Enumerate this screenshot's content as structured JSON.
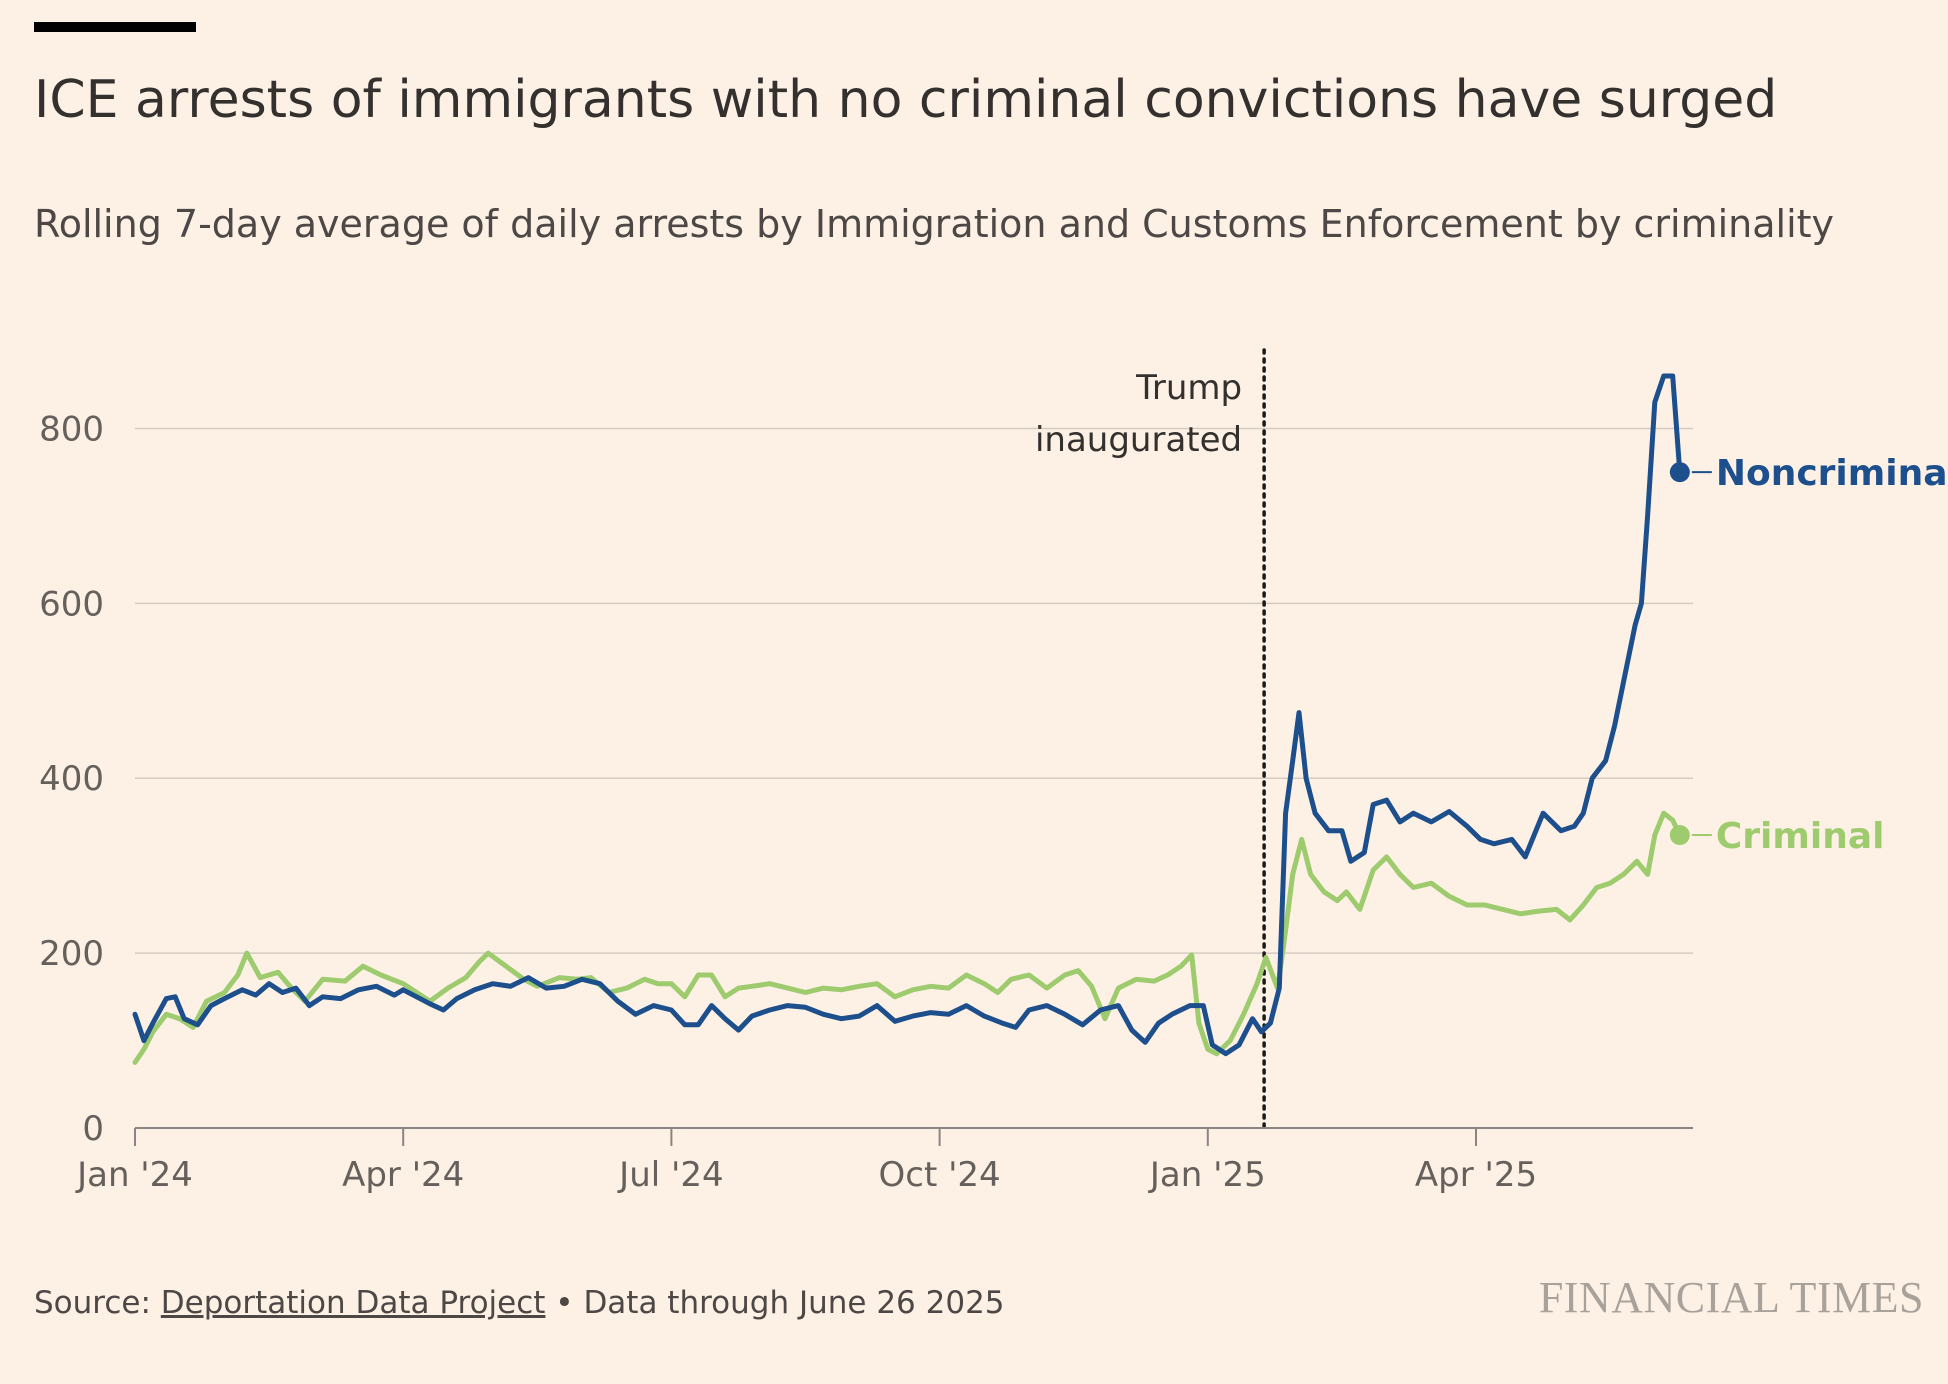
{
  "header": {
    "title": "ICE arrests of immigrants with no criminal convictions have surged",
    "subtitle": "Rolling 7-day average of daily arrests by Immigration and Customs Enforcement by criminality"
  },
  "footer": {
    "source_prefix": "Source: ",
    "source_link": "Deportation Data Project",
    "separator": " • ",
    "data_through": "Data through June 26 2025",
    "brand": "FINANCIAL TIMES"
  },
  "colors": {
    "background": "#fdf1e6",
    "noncriminal": "#1d4f8c",
    "criminal": "#9ecb6e",
    "gridline": "#d6cbbf",
    "axis": "#8a8580",
    "text": "#33302e"
  },
  "chart_data": {
    "type": "line",
    "title": "ICE arrests of immigrants with no criminal convictions have surged",
    "subtitle": "Rolling 7-day average of daily arrests by Immigration and Customs Enforcement by criminality",
    "xlabel": "",
    "ylabel": "",
    "x_unit": "months since Jan 2024",
    "xlim": [
      0,
      17.85
    ],
    "ylim": [
      0,
      900
    ],
    "yticks": [
      0,
      200,
      400,
      600,
      800
    ],
    "xticks": [
      {
        "value": 0,
        "label": "Jan '24"
      },
      {
        "value": 3,
        "label": "Apr '24"
      },
      {
        "value": 6,
        "label": "Jul '24"
      },
      {
        "value": 9,
        "label": "Oct '24"
      },
      {
        "value": 12,
        "label": "Jan '25"
      },
      {
        "value": 15,
        "label": "Apr '25"
      }
    ],
    "grid": true,
    "annotations": [
      {
        "x": 12.63,
        "lines": [
          "Trump",
          "inaugurated"
        ],
        "style": "dotted-vertical"
      }
    ],
    "series": [
      {
        "name": "Noncriminal",
        "color": "#1d4f8c",
        "end_label": "Noncriminal",
        "points": [
          [
            0,
            130
          ],
          [
            0.1,
            100
          ],
          [
            0.2,
            120
          ],
          [
            0.35,
            148
          ],
          [
            0.45,
            150
          ],
          [
            0.55,
            125
          ],
          [
            0.7,
            118
          ],
          [
            0.85,
            140
          ],
          [
            1.0,
            148
          ],
          [
            1.2,
            158
          ],
          [
            1.35,
            152
          ],
          [
            1.5,
            165
          ],
          [
            1.65,
            155
          ],
          [
            1.8,
            160
          ],
          [
            1.95,
            140
          ],
          [
            2.1,
            150
          ],
          [
            2.3,
            148
          ],
          [
            2.5,
            158
          ],
          [
            2.7,
            162
          ],
          [
            2.9,
            152
          ],
          [
            3.0,
            158
          ],
          [
            3.15,
            150
          ],
          [
            3.3,
            142
          ],
          [
            3.45,
            135
          ],
          [
            3.6,
            148
          ],
          [
            3.8,
            158
          ],
          [
            4.0,
            165
          ],
          [
            4.2,
            162
          ],
          [
            4.4,
            172
          ],
          [
            4.6,
            160
          ],
          [
            4.8,
            162
          ],
          [
            5.0,
            170
          ],
          [
            5.2,
            165
          ],
          [
            5.4,
            145
          ],
          [
            5.6,
            130
          ],
          [
            5.8,
            140
          ],
          [
            6.0,
            135
          ],
          [
            6.15,
            118
          ],
          [
            6.3,
            118
          ],
          [
            6.45,
            140
          ],
          [
            6.6,
            125
          ],
          [
            6.75,
            112
          ],
          [
            6.9,
            128
          ],
          [
            7.1,
            135
          ],
          [
            7.3,
            140
          ],
          [
            7.5,
            138
          ],
          [
            7.7,
            130
          ],
          [
            7.9,
            125
          ],
          [
            8.1,
            128
          ],
          [
            8.3,
            140
          ],
          [
            8.5,
            122
          ],
          [
            8.7,
            128
          ],
          [
            8.9,
            132
          ],
          [
            9.1,
            130
          ],
          [
            9.3,
            140
          ],
          [
            9.5,
            128
          ],
          [
            9.7,
            120
          ],
          [
            9.85,
            115
          ],
          [
            10.0,
            135
          ],
          [
            10.2,
            140
          ],
          [
            10.4,
            130
          ],
          [
            10.6,
            118
          ],
          [
            10.8,
            135
          ],
          [
            11.0,
            140
          ],
          [
            11.15,
            112
          ],
          [
            11.3,
            98
          ],
          [
            11.45,
            120
          ],
          [
            11.6,
            130
          ],
          [
            11.8,
            140
          ],
          [
            11.95,
            140
          ],
          [
            12.05,
            95
          ],
          [
            12.2,
            85
          ],
          [
            12.35,
            95
          ],
          [
            12.5,
            125
          ],
          [
            12.6,
            110
          ],
          [
            12.7,
            120
          ],
          [
            12.8,
            160
          ],
          [
            12.87,
            360
          ],
          [
            12.95,
            420
          ],
          [
            13.02,
            475
          ],
          [
            13.1,
            400
          ],
          [
            13.2,
            360
          ],
          [
            13.35,
            340
          ],
          [
            13.5,
            340
          ],
          [
            13.6,
            305
          ],
          [
            13.75,
            315
          ],
          [
            13.85,
            370
          ],
          [
            14.0,
            375
          ],
          [
            14.15,
            350
          ],
          [
            14.3,
            360
          ],
          [
            14.5,
            350
          ],
          [
            14.7,
            362
          ],
          [
            14.9,
            345
          ],
          [
            15.05,
            330
          ],
          [
            15.2,
            325
          ],
          [
            15.4,
            330
          ],
          [
            15.55,
            310
          ],
          [
            15.75,
            360
          ],
          [
            15.95,
            340
          ],
          [
            16.1,
            345
          ],
          [
            16.2,
            360
          ],
          [
            16.3,
            400
          ],
          [
            16.45,
            420
          ],
          [
            16.55,
            460
          ],
          [
            16.65,
            510
          ],
          [
            16.78,
            575
          ],
          [
            16.85,
            600
          ],
          [
            16.92,
            700
          ],
          [
            17.0,
            830
          ],
          [
            17.1,
            860
          ],
          [
            17.2,
            860
          ],
          [
            17.28,
            750
          ]
        ]
      },
      {
        "name": "Criminal",
        "color": "#9ecb6e",
        "end_label": "Criminal",
        "points": [
          [
            0,
            75
          ],
          [
            0.1,
            90
          ],
          [
            0.2,
            110
          ],
          [
            0.35,
            130
          ],
          [
            0.5,
            125
          ],
          [
            0.65,
            115
          ],
          [
            0.8,
            145
          ],
          [
            1.0,
            155
          ],
          [
            1.15,
            175
          ],
          [
            1.25,
            200
          ],
          [
            1.4,
            172
          ],
          [
            1.6,
            178
          ],
          [
            1.75,
            160
          ],
          [
            1.9,
            145
          ],
          [
            2.1,
            170
          ],
          [
            2.35,
            168
          ],
          [
            2.55,
            185
          ],
          [
            2.75,
            175
          ],
          [
            3.0,
            165
          ],
          [
            3.15,
            155
          ],
          [
            3.3,
            145
          ],
          [
            3.5,
            160
          ],
          [
            3.7,
            172
          ],
          [
            3.85,
            190
          ],
          [
            3.95,
            200
          ],
          [
            4.15,
            185
          ],
          [
            4.35,
            170
          ],
          [
            4.5,
            162
          ],
          [
            4.75,
            172
          ],
          [
            4.95,
            170
          ],
          [
            5.1,
            172
          ],
          [
            5.3,
            155
          ],
          [
            5.5,
            160
          ],
          [
            5.7,
            170
          ],
          [
            5.85,
            165
          ],
          [
            6.0,
            165
          ],
          [
            6.15,
            150
          ],
          [
            6.3,
            175
          ],
          [
            6.45,
            175
          ],
          [
            6.6,
            150
          ],
          [
            6.75,
            160
          ],
          [
            6.9,
            162
          ],
          [
            7.1,
            165
          ],
          [
            7.3,
            160
          ],
          [
            7.5,
            155
          ],
          [
            7.7,
            160
          ],
          [
            7.9,
            158
          ],
          [
            8.1,
            162
          ],
          [
            8.3,
            165
          ],
          [
            8.5,
            150
          ],
          [
            8.7,
            158
          ],
          [
            8.9,
            162
          ],
          [
            9.1,
            160
          ],
          [
            9.3,
            175
          ],
          [
            9.5,
            165
          ],
          [
            9.65,
            155
          ],
          [
            9.8,
            170
          ],
          [
            10.0,
            175
          ],
          [
            10.2,
            160
          ],
          [
            10.4,
            175
          ],
          [
            10.55,
            180
          ],
          [
            10.7,
            162
          ],
          [
            10.85,
            125
          ],
          [
            11.0,
            160
          ],
          [
            11.2,
            170
          ],
          [
            11.4,
            168
          ],
          [
            11.55,
            175
          ],
          [
            11.7,
            185
          ],
          [
            11.82,
            198
          ],
          [
            11.9,
            120
          ],
          [
            12.0,
            90
          ],
          [
            12.1,
            85
          ],
          [
            12.25,
            100
          ],
          [
            12.4,
            130
          ],
          [
            12.55,
            165
          ],
          [
            12.65,
            195
          ],
          [
            12.78,
            160
          ],
          [
            12.85,
            210
          ],
          [
            12.95,
            290
          ],
          [
            13.05,
            330
          ],
          [
            13.15,
            290
          ],
          [
            13.3,
            270
          ],
          [
            13.45,
            260
          ],
          [
            13.55,
            270
          ],
          [
            13.7,
            250
          ],
          [
            13.85,
            295
          ],
          [
            14.0,
            310
          ],
          [
            14.15,
            290
          ],
          [
            14.3,
            275
          ],
          [
            14.5,
            280
          ],
          [
            14.7,
            265
          ],
          [
            14.9,
            255
          ],
          [
            15.1,
            255
          ],
          [
            15.3,
            250
          ],
          [
            15.5,
            245
          ],
          [
            15.7,
            248
          ],
          [
            15.9,
            250
          ],
          [
            16.05,
            238
          ],
          [
            16.2,
            255
          ],
          [
            16.35,
            275
          ],
          [
            16.5,
            280
          ],
          [
            16.65,
            290
          ],
          [
            16.8,
            305
          ],
          [
            16.92,
            290
          ],
          [
            17.0,
            335
          ],
          [
            17.1,
            360
          ],
          [
            17.2,
            352
          ],
          [
            17.28,
            335
          ]
        ]
      }
    ]
  }
}
